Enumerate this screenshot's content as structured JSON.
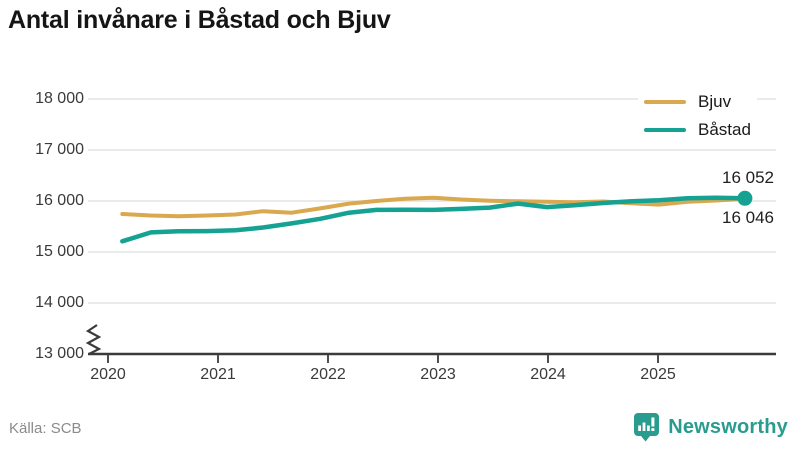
{
  "title": "Antal invånare i Båstad och Bjuv",
  "source": "Källa: SCB",
  "brand": {
    "name": "Newsworthy",
    "color": "#2a9c8f"
  },
  "legend": {
    "items": [
      {
        "label": "Bjuv",
        "color": "#d9a84f"
      },
      {
        "label": "Båstad",
        "color": "#15a293"
      }
    ]
  },
  "chart_data": {
    "type": "line",
    "title": "Antal invånare i Båstad och Bjuv",
    "xlabel": "",
    "ylabel": "",
    "grid": "horizontal",
    "legend_position": "top-right",
    "axis_break_bottom": true,
    "ylim": [
      13000,
      18000
    ],
    "xlim": [
      2020,
      2026
    ],
    "y_ticks": [
      "18 000",
      "17 000",
      "16 000",
      "15 000",
      "14 000",
      "13 000"
    ],
    "y_tick_values": [
      18000,
      17000,
      16000,
      15000,
      14000,
      13000
    ],
    "x_ticks": [
      "2020",
      "2021",
      "2022",
      "2023",
      "2024",
      "2025"
    ],
    "x_tick_values": [
      2020,
      2021,
      2022,
      2023,
      2024,
      2025
    ],
    "x_unit": "year (quarterly points, decimal years)",
    "x": [
      2020.13,
      2020.39,
      2020.64,
      2020.9,
      2021.16,
      2021.41,
      2021.67,
      2021.93,
      2022.19,
      2022.44,
      2022.7,
      2022.96,
      2023.21,
      2023.47,
      2023.73,
      2023.99,
      2024.24,
      2024.5,
      2024.76,
      2025.01,
      2025.27,
      2025.53,
      2025.79
    ],
    "series": [
      {
        "name": "Bjuv",
        "color": "#d9a84f",
        "end_label": "16 046",
        "end_value": 16046,
        "values": [
          15745,
          15715,
          15700,
          15715,
          15735,
          15800,
          15770,
          15855,
          15950,
          16000,
          16045,
          16065,
          16030,
          16005,
          15995,
          15985,
          15975,
          15990,
          15955,
          15930,
          15985,
          16010,
          16046
        ]
      },
      {
        "name": "Båstad",
        "color": "#15a293",
        "end_label": "16 052",
        "end_value": 16052,
        "end_dot": true,
        "values": [
          15210,
          15385,
          15405,
          15410,
          15425,
          15480,
          15560,
          15650,
          15770,
          15825,
          15830,
          15825,
          15845,
          15870,
          15950,
          15880,
          15915,
          15960,
          15995,
          16015,
          16055,
          16065,
          16052
        ]
      }
    ]
  }
}
